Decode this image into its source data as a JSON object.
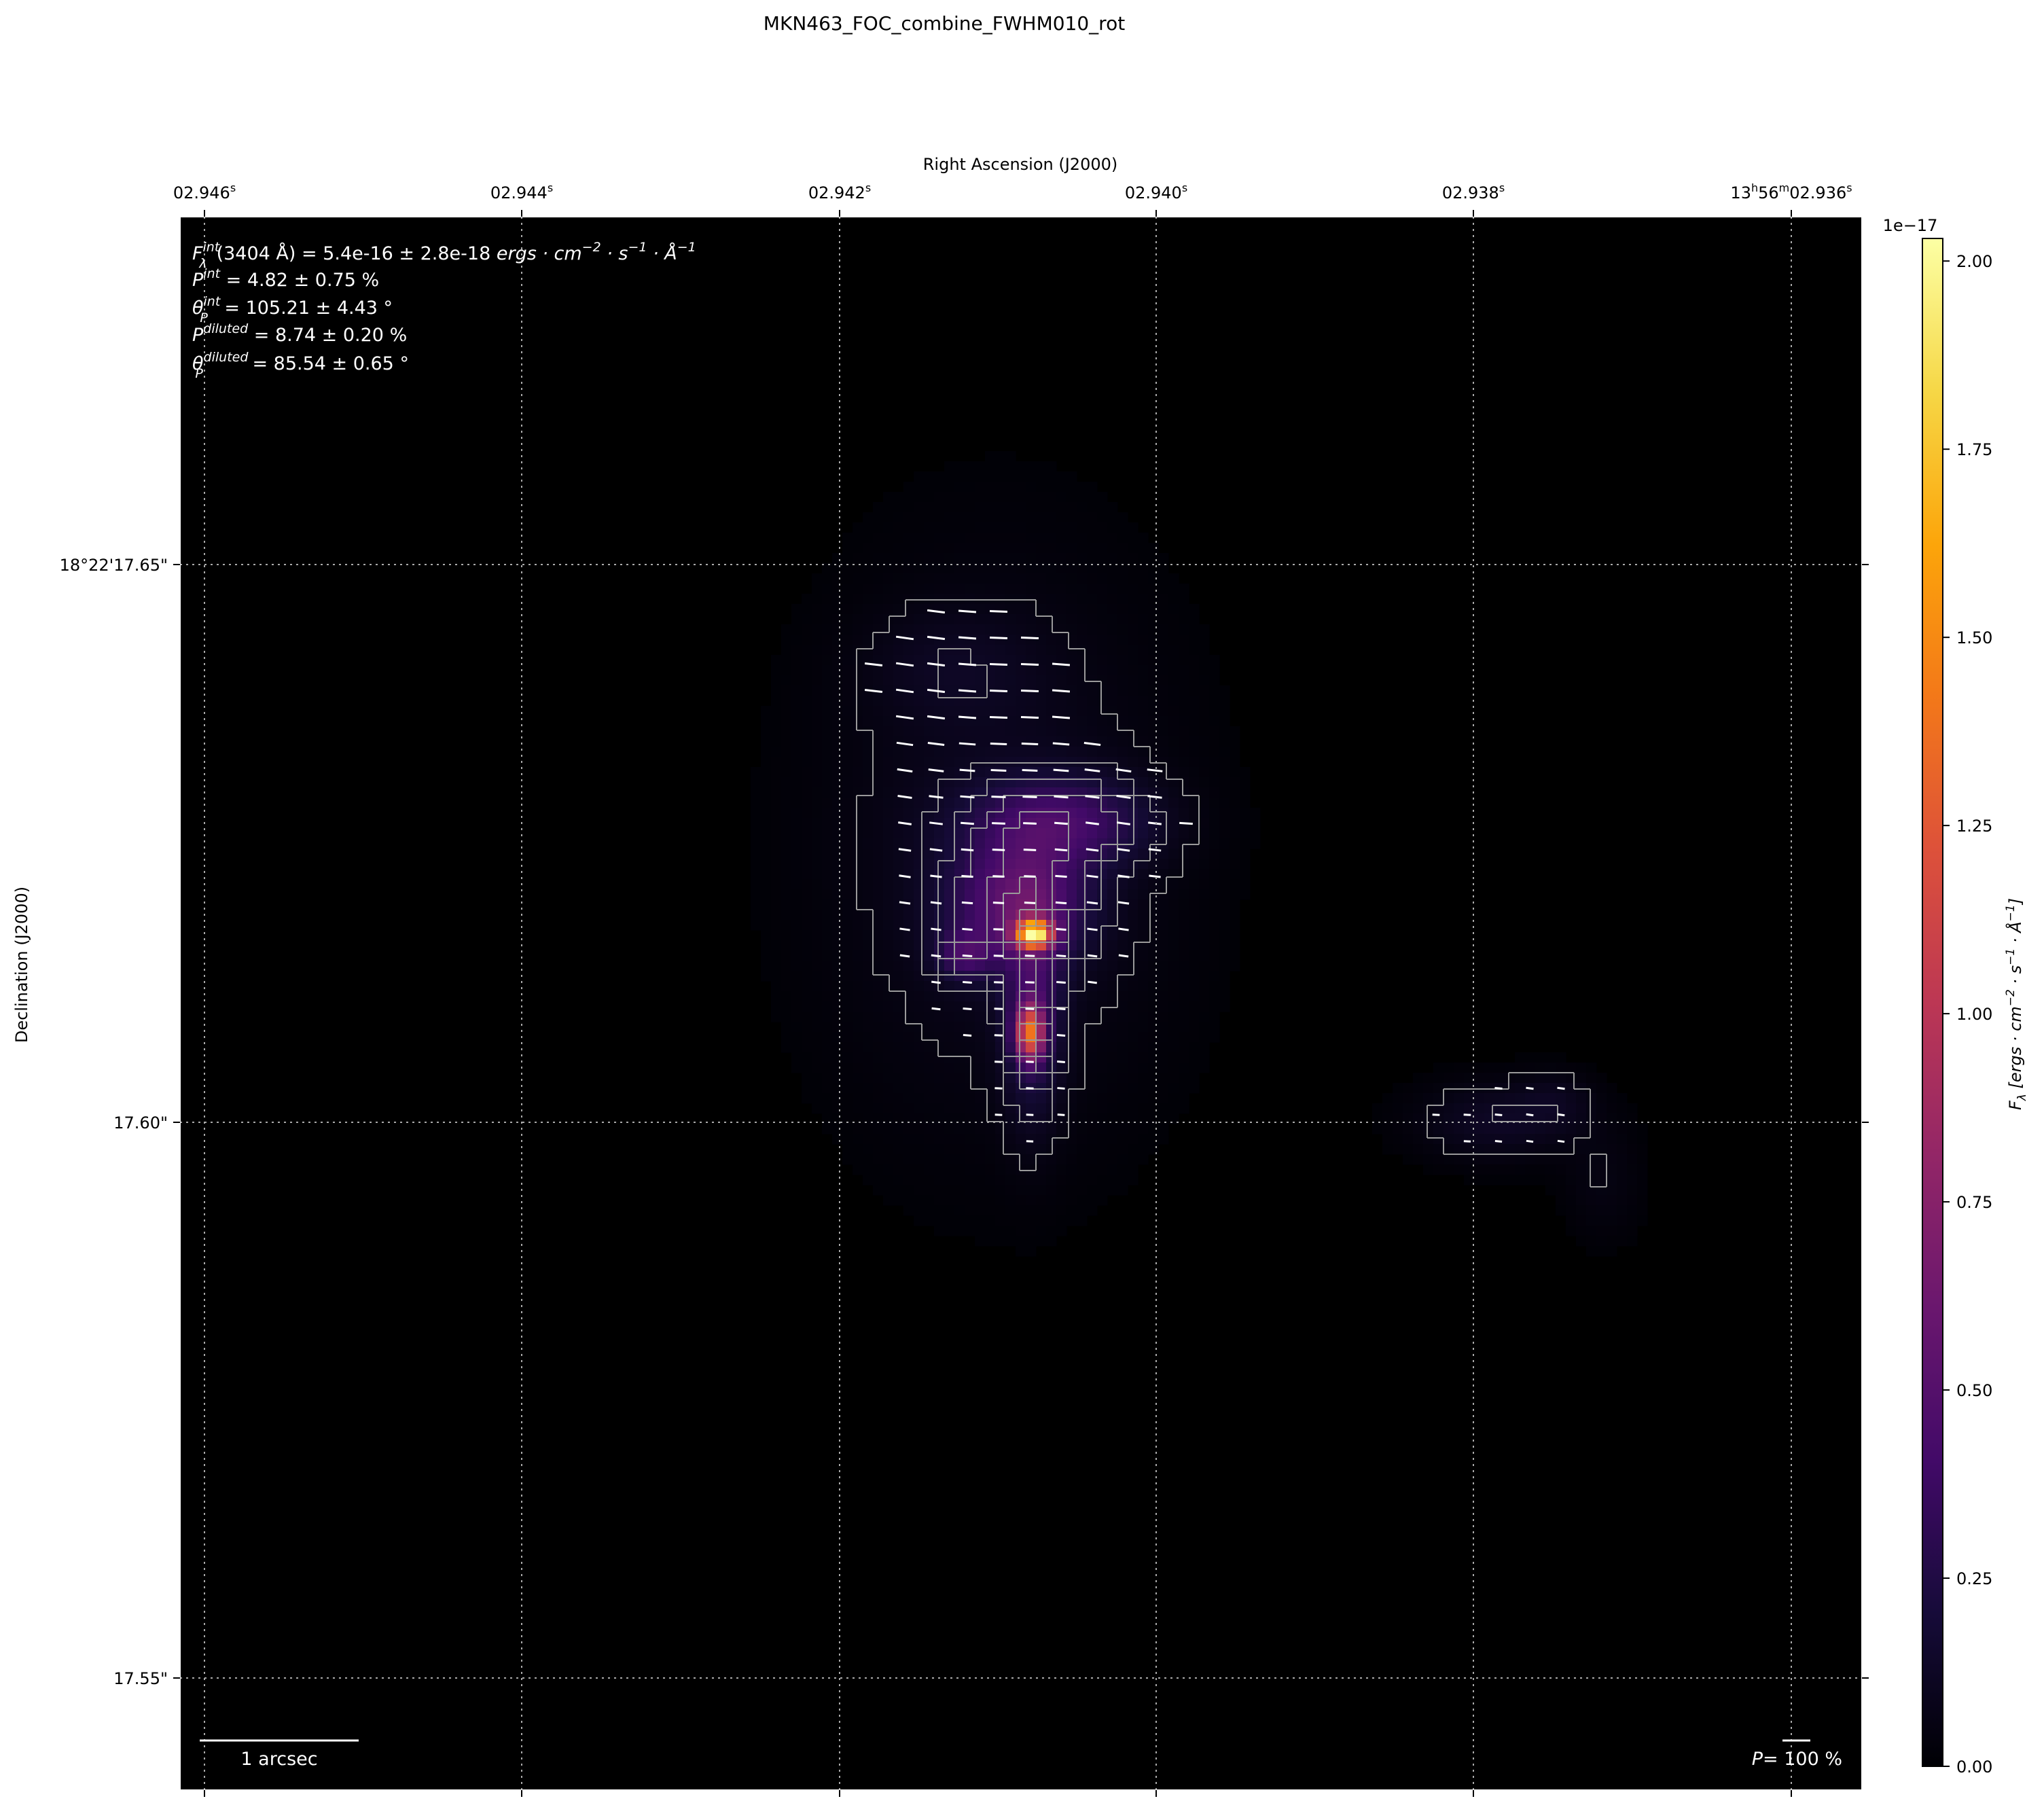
{
  "chart_data": {
    "type": "heatmap",
    "title": "MKN463_FOC_combine_FWHM010_rot",
    "xlabel": "Right Ascension (J2000)",
    "ylabel": "Declination (J2000)",
    "x_ticks": [
      "02.946",
      "02.944",
      "02.942",
      "02.940",
      "02.938",
      "13h56m02.936"
    ],
    "x_tick_labels": [
      {
        "main": "02.946",
        "sup": "s"
      },
      {
        "main": "02.944",
        "sup": "s"
      },
      {
        "main": "02.942",
        "sup": "s"
      },
      {
        "main": "02.940",
        "sup": "s"
      },
      {
        "main": "02.938",
        "sup": "s"
      },
      {
        "parts": [
          "13",
          "h",
          "56",
          "m",
          "02.936",
          "s"
        ]
      }
    ],
    "y_tick_labels": [
      "18°22'17.65\"",
      "17.60\"",
      "17.55\""
    ],
    "grid": true,
    "colormap": "inferno",
    "colorbar": {
      "label": "F_λ [ergs · cm^-2 · s^-1 · Å^-1]",
      "label_parts": {
        "main": "F",
        "sub": "λ",
        "rest": " [ergs · cm",
        "e1": "−2",
        "m1": " · s",
        "e2": "−1",
        "m2": " · Å",
        "e3": "−1",
        "end": "]"
      },
      "offset_text": "1e−17",
      "range": [
        0.0,
        2.03
      ],
      "ticks": [
        "0.00",
        "0.25",
        "0.50",
        "0.75",
        "1.00",
        "1.25",
        "1.50",
        "1.75",
        "2.00"
      ]
    },
    "overlays": {
      "contours": true,
      "polarization_vectors": true
    },
    "annotations": {
      "flux": {
        "sym": "F",
        "sup": "int",
        "sub": "λ",
        "text": "(3404 Å) = 5.4e-16 ± 2.8e-18 ",
        "unit": "ergs · cm",
        "e1": "−2",
        "u2": " · s",
        "e2": "−1",
        "u3": " · Å",
        "e3": "−1"
      },
      "p_int": {
        "sym": "P",
        "sup": "int",
        "text": " = 4.82 ± 0.75 %"
      },
      "theta_int": {
        "sym": "θ",
        "sub": "P",
        "sup": "int",
        "text": " = 105.21 ± 4.43 °"
      },
      "p_diluted": {
        "sym": "P",
        "sup": "diluted",
        "text": " = 8.74 ± 0.20 %"
      },
      "theta_diluted": {
        "sym": "θ",
        "sub": "P",
        "sup": "diluted",
        "text": " = 85.54 ± 0.65 °"
      },
      "scale_bar": "1 arcsec",
      "vector_scale": {
        "sym": "P",
        "text": "= 100 %"
      }
    }
  }
}
